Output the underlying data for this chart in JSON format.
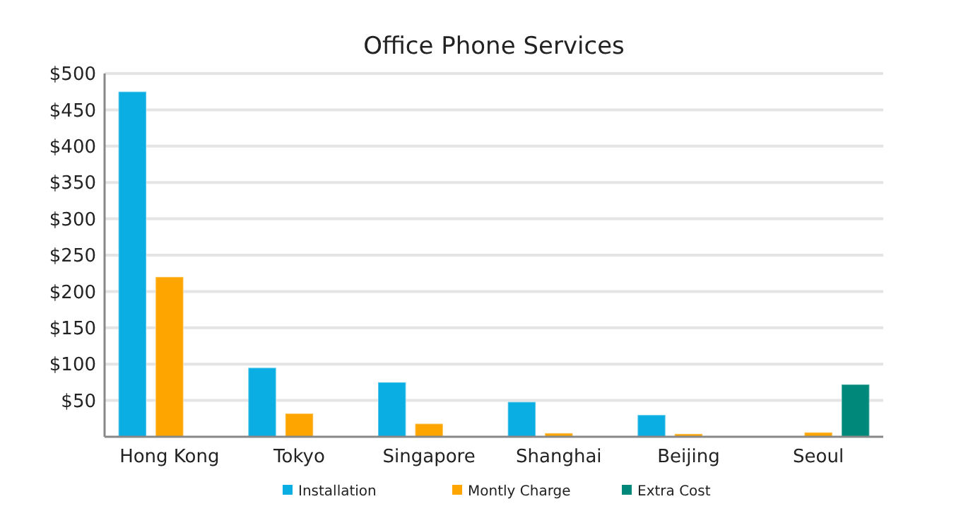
{
  "chart_data": {
    "type": "bar",
    "title": "Office Phone Services",
    "categories": [
      "Hong Kong",
      "Tokyo",
      "Singapore",
      "Shanghai",
      "Beijing",
      "Seoul"
    ],
    "series": [
      {
        "name": "Installation",
        "color": "#0aaee3",
        "values": [
          475,
          95,
          75,
          48,
          30,
          null
        ]
      },
      {
        "name": "Montly Charge",
        "color": "#ffa500",
        "values": [
          220,
          32,
          18,
          5,
          4,
          6
        ]
      },
      {
        "name": "Extra Cost",
        "color": "#00897b",
        "values": [
          null,
          null,
          null,
          null,
          null,
          72
        ]
      }
    ],
    "ylim": [
      0,
      500
    ],
    "yticks": [
      {
        "value": 50,
        "label": "$50"
      },
      {
        "value": 100,
        "label": "$100"
      },
      {
        "value": 150,
        "label": "$150"
      },
      {
        "value": 200,
        "label": "$200"
      },
      {
        "value": 250,
        "label": "$250"
      },
      {
        "value": 300,
        "label": "$300"
      },
      {
        "value": 350,
        "label": "$350"
      },
      {
        "value": 400,
        "label": "$400"
      },
      {
        "value": 450,
        "label": "$450"
      },
      {
        "value": 500,
        "label": "$500"
      }
    ],
    "grid": "y",
    "legend": "bottom"
  }
}
